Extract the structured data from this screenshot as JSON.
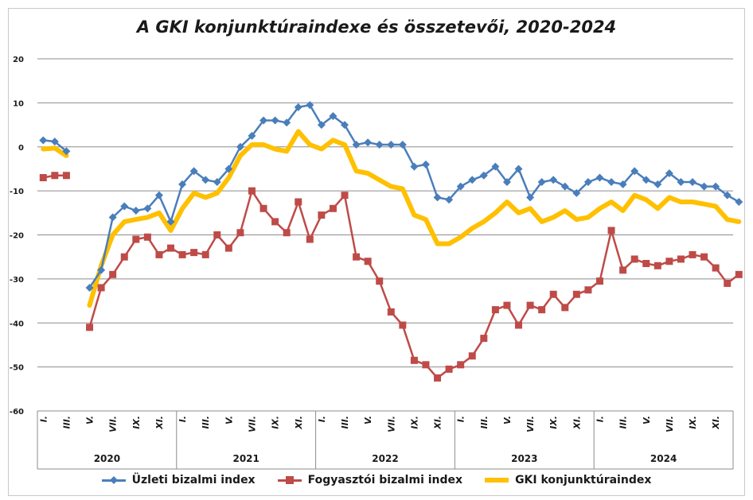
{
  "chart_data": {
    "type": "line",
    "title": "A GKI konjunktúraindexe és összetevői, 2020-2024",
    "ylim": [
      -60,
      20
    ],
    "yticks": [
      20,
      10,
      0,
      -10,
      -20,
      -30,
      -40,
      -50,
      -60
    ],
    "grid": true,
    "legend_position": "bottom",
    "month_labels": [
      "I.",
      "III.",
      "V.",
      "VII.",
      "IX.",
      "XI."
    ],
    "years": [
      "2020",
      "2021",
      "2022",
      "2023",
      "2024"
    ],
    "series": [
      {
        "name": "Üzleti bizalmi index",
        "color": "#4a7ebb",
        "marker": "diamond",
        "values": [
          1.5,
          1.2,
          -1,
          null,
          -32,
          -28,
          -16,
          -13.5,
          -14.5,
          -14,
          -11,
          -17,
          -8.5,
          -5.5,
          -7.5,
          -8,
          -5,
          0,
          2.5,
          6,
          6,
          5.5,
          9,
          9.5,
          5,
          7,
          5,
          0.5,
          1,
          0.5,
          0.5,
          0.5,
          -4.5,
          -4,
          -11.5,
          -12,
          -9,
          -7.5,
          -6.5,
          -4.5,
          -8,
          -5,
          -11.5,
          -8,
          -7.5,
          -9,
          -10.5,
          -8,
          -7,
          -8,
          -8.5,
          -5.5,
          -7.5,
          -8.5,
          -6,
          -8,
          -8,
          -9,
          -9,
          -11,
          -12.5
        ]
      },
      {
        "name": "Fogyasztói bizalmi index",
        "color": "#be4b48",
        "marker": "square",
        "values": [
          -7,
          -6.5,
          -6.5,
          null,
          -41,
          -32,
          -29,
          -25,
          -21,
          -20.5,
          -24.5,
          -23,
          -24.5,
          -24,
          -24.5,
          -20,
          -23,
          -19.5,
          -10,
          -14,
          -17,
          -19.5,
          -12.5,
          -21,
          -15.5,
          -14,
          -11,
          -25,
          -26,
          -30.5,
          -37.5,
          -40.5,
          -48.5,
          -49.5,
          -52.5,
          -50.5,
          -49.5,
          -47.5,
          -43.5,
          -37,
          -36,
          -40.5,
          -36,
          -37,
          -33.5,
          -36.5,
          -33.5,
          -32.5,
          -30.5,
          -19,
          -28,
          -25.5,
          -26.5,
          -27,
          -26,
          -25.5,
          -24.5,
          -25,
          -27.5,
          -31,
          -29
        ]
      },
      {
        "name": "GKI konjunktúraindex",
        "color": "#ffc000",
        "marker": "none",
        "values": [
          -0.5,
          -0.3,
          -2,
          null,
          -36,
          -27,
          -20,
          -17,
          -16.5,
          -16,
          -15,
          -19,
          -14,
          -10.5,
          -11.5,
          -10.5,
          -7,
          -2,
          0.5,
          0.5,
          -0.5,
          -1,
          3.5,
          0.5,
          -0.5,
          1.5,
          0.5,
          -5.5,
          -6,
          -7.5,
          -9,
          -9.5,
          -15.5,
          -16.5,
          -22,
          -22,
          -20.5,
          -18.5,
          -17,
          -15,
          -12.5,
          -15,
          -14,
          -17,
          -16,
          -14.5,
          -16.5,
          -16,
          -14,
          -12.5,
          -14.5,
          -11,
          -12,
          -14,
          -11.5,
          -12.5,
          -12.5,
          -13,
          -13.5,
          -16.5,
          -17
        ]
      }
    ]
  }
}
